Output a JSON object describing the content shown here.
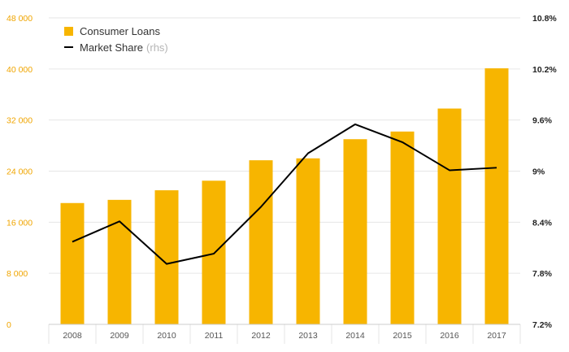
{
  "chart_data": {
    "type": "bar",
    "title": "",
    "categories": [
      "2008",
      "2009",
      "2010",
      "2011",
      "2012",
      "2013",
      "2014",
      "2015",
      "2016",
      "2017"
    ],
    "series": [
      {
        "name": "Consumer Loans",
        "type": "bar",
        "axis": "left",
        "color": "#f7b500",
        "values": [
          19000,
          19500,
          21000,
          22500,
          25700,
          26000,
          29000,
          30200,
          33800,
          40100
        ]
      },
      {
        "name": "Market Share",
        "axis_note": "(rhs)",
        "type": "line",
        "axis": "right",
        "color": "#000000",
        "values": [
          8.17,
          8.41,
          7.91,
          8.03,
          8.58,
          9.21,
          9.55,
          9.34,
          9.01,
          9.04
        ]
      }
    ],
    "y_left": {
      "ylim": [
        0,
        48000
      ],
      "ticks": [
        0,
        8000,
        16000,
        24000,
        32000,
        40000,
        48000
      ],
      "tick_labels": [
        "0",
        "8 000",
        "16 000",
        "24 000",
        "32 000",
        "40 000",
        "48 000"
      ],
      "label_color": "#f0a500"
    },
    "y_right": {
      "ylim": [
        7.2,
        10.8
      ],
      "ticks": [
        7.2,
        7.8,
        8.4,
        9.0,
        9.6,
        10.2,
        10.8
      ],
      "tick_labels": [
        "7.2%",
        "7.8%",
        "8.4%",
        "9%",
        "9.6%",
        "10.2%",
        "10.8%"
      ],
      "label_color": "#222222"
    },
    "grid": true,
    "grid_color": "#e6e6e6",
    "legend_position": "top-left"
  }
}
